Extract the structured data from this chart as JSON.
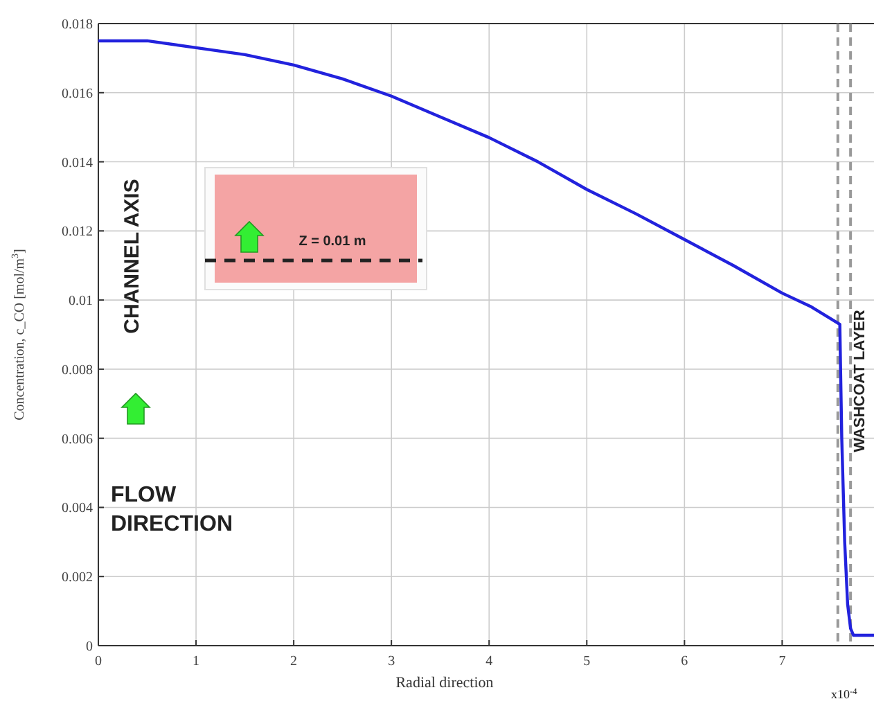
{
  "chart_data": {
    "type": "line",
    "xlabel": "Radial direction",
    "ylabel": "Concentration, c_CO [mol/m$^{3}$]",
    "x": [
      0,
      0.5,
      1,
      1.5,
      2,
      2.5,
      3,
      3.5,
      4,
      4.5,
      5,
      5.5,
      6,
      6.5,
      7,
      7.3,
      7.59,
      7.61,
      7.64,
      7.67,
      7.7,
      7.73,
      7.8,
      7.94
    ],
    "series": [
      {
        "color": "#2222dd",
        "values": [
          0.0175,
          0.0175,
          0.0173,
          0.0171,
          0.0168,
          0.0164,
          0.0159,
          0.0153,
          0.0147,
          0.014,
          0.0132,
          0.0125,
          0.01175,
          0.011,
          0.0102,
          0.0098,
          0.0093,
          0.006,
          0.003,
          0.0012,
          0.0005,
          0.0003,
          0.0003,
          0.0003
        ]
      }
    ],
    "xlim": [
      0,
      7.94
    ],
    "ylim": [
      0,
      0.018
    ],
    "xticks": [
      0,
      1,
      2,
      3,
      4,
      5,
      6,
      7
    ],
    "yticks": [
      0,
      0.002,
      0.004,
      0.006,
      0.008,
      0.01,
      0.012,
      0.014,
      0.016,
      0.018
    ],
    "grid": true,
    "line_style": "solid",
    "marker": "none",
    "ref_lines": [
      {
        "axis": "x",
        "value": 7.57,
        "color": "#999999",
        "line_style": "dashed"
      },
      {
        "axis": "x",
        "value": 7.7,
        "color": "#999999",
        "line_style": "dashed"
      }
    ],
    "annotations": [
      "CHANNEL AXIS",
      "FLOW DIRECTION",
      "Z = 0.01 m",
      "WASHCOAT LAYER",
      "x10$^{-4}$"
    ]
  }
}
